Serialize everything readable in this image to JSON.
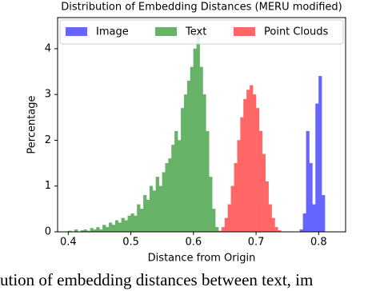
{
  "chart_data": {
    "type": "histogram",
    "title": "Distribution of Embedding Distances (MERU modified)",
    "xlabel": "Distance from Origin",
    "ylabel": "Percentage",
    "caption": "ution of embedding distances between text, im",
    "xlim": [
      0.383,
      0.843
    ],
    "ylim": [
      0,
      4.68
    ],
    "xticks": [
      0.4,
      0.5,
      0.6,
      0.7,
      0.8
    ],
    "yticks": [
      0,
      1,
      2,
      3,
      4
    ],
    "legend": "top",
    "series": [
      {
        "name": "Image",
        "color": "#6666ff",
        "bins": [
          0.77,
          0.775,
          0.78,
          0.785,
          0.79,
          0.795,
          0.8,
          0.805,
          0.81
        ],
        "values": [
          0.05,
          0.4,
          2.2,
          1.5,
          0.6,
          2.8,
          3.4,
          0.8
        ]
      },
      {
        "name": "Text",
        "color": "#66b266",
        "bins": [
          0.4,
          0.405,
          0.41,
          0.415,
          0.42,
          0.425,
          0.43,
          0.435,
          0.44,
          0.445,
          0.45,
          0.455,
          0.46,
          0.465,
          0.47,
          0.475,
          0.48,
          0.485,
          0.49,
          0.495,
          0.5,
          0.505,
          0.51,
          0.515,
          0.52,
          0.525,
          0.53,
          0.535,
          0.54,
          0.545,
          0.55,
          0.555,
          0.56,
          0.565,
          0.57,
          0.575,
          0.58,
          0.585,
          0.59,
          0.595,
          0.6,
          0.605,
          0.61,
          0.615,
          0.62,
          0.625,
          0.63,
          0.635,
          0.64
        ],
        "values": [
          0.02,
          0,
          0.05,
          0,
          0.03,
          0.05,
          0.02,
          0.08,
          0.05,
          0.1,
          0.05,
          0.15,
          0.1,
          0.2,
          0.15,
          0.25,
          0.2,
          0.3,
          0.25,
          0.35,
          0.4,
          0.35,
          0.6,
          0.5,
          0.8,
          0.7,
          1.0,
          0.9,
          1.2,
          1.0,
          1.3,
          1.5,
          1.6,
          1.9,
          2.2,
          2.0,
          2.7,
          3.0,
          3.3,
          3.6,
          4.0,
          4.3,
          3.6,
          3.0,
          2.2,
          1.2,
          0.5,
          0.1
        ]
      },
      {
        "name": "Point Clouds",
        "color": "#ff6666",
        "bins": [
          0.64,
          0.645,
          0.65,
          0.655,
          0.66,
          0.665,
          0.67,
          0.675,
          0.68,
          0.685,
          0.69,
          0.695,
          0.7,
          0.705,
          0.71,
          0.715,
          0.72,
          0.725,
          0.73,
          0.735,
          0.74
        ],
        "values": [
          0.02,
          0.1,
          0.3,
          0.6,
          1.0,
          1.5,
          2.0,
          2.5,
          2.9,
          3.1,
          3.2,
          3.0,
          2.7,
          2.2,
          1.7,
          1.1,
          0.6,
          0.3,
          0.1,
          0.03
        ]
      }
    ]
  }
}
